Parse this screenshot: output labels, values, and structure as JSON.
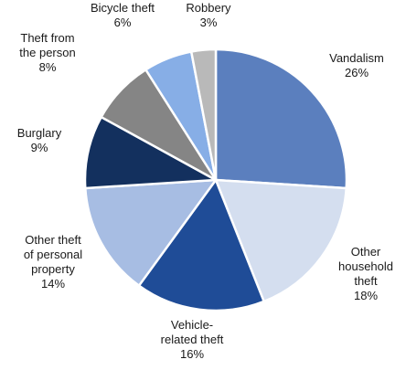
{
  "chart_data": {
    "type": "pie",
    "start_angle_deg": 0,
    "direction": "clockwise",
    "slices": [
      {
        "label_lines": [
          "Vandalism"
        ],
        "value_label": "26%",
        "value": 26,
        "color": "#5b7fbe"
      },
      {
        "label_lines": [
          "Other",
          "household",
          "theft"
        ],
        "value_label": "18%",
        "value": 18,
        "color": "#d4deef"
      },
      {
        "label_lines": [
          "Vehicle-",
          "related theft"
        ],
        "value_label": "16%",
        "value": 16,
        "color": "#1f4c97"
      },
      {
        "label_lines": [
          "Other theft",
          "of personal",
          "property"
        ],
        "value_label": "14%",
        "value": 14,
        "color": "#a7bde3"
      },
      {
        "label_lines": [
          "Burglary"
        ],
        "value_label": "9%",
        "value": 9,
        "color": "#13305e"
      },
      {
        "label_lines": [
          "Theft from",
          "the person"
        ],
        "value_label": "8%",
        "value": 8,
        "color": "#858585"
      },
      {
        "label_lines": [
          "Bicycle theft"
        ],
        "value_label": "6%",
        "value": 6,
        "color": "#87aee6"
      },
      {
        "label_lines": [
          "Robbery"
        ],
        "value_label": "3%",
        "value": 3,
        "color": "#b9b9b9"
      }
    ]
  }
}
